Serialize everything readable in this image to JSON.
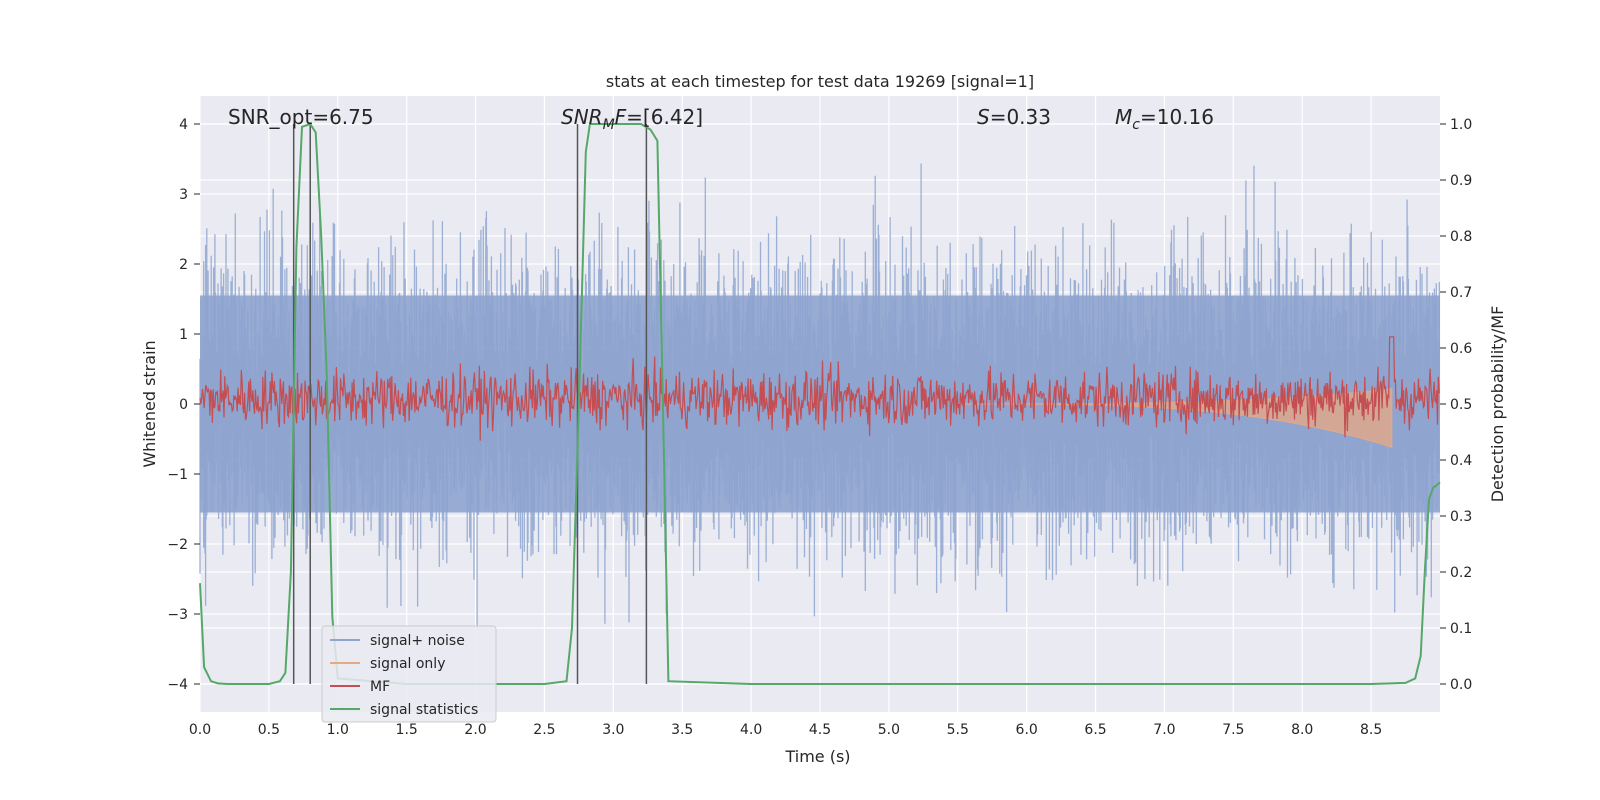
{
  "chart_data": {
    "type": "line",
    "title": "stats at each timestep for test data 19269 [signal=1]",
    "xlabel": "Time (s)",
    "ylabel_left": "Whitened strain",
    "ylabel_right": "Detection probability/MF",
    "xlim": [
      0.0,
      9.0
    ],
    "ylim_left": [
      -4.4,
      4.4
    ],
    "ylim_right": [
      -0.05,
      1.05
    ],
    "x_ticks": [
      "0.0",
      "0.5",
      "1.0",
      "1.5",
      "2.0",
      "2.5",
      "3.0",
      "3.5",
      "4.0",
      "4.5",
      "5.0",
      "5.5",
      "6.0",
      "6.5",
      "7.0",
      "7.5",
      "8.0",
      "8.5"
    ],
    "y_left_ticks": [
      "−4",
      "−3",
      "−2",
      "−1",
      "0",
      "1",
      "2",
      "3",
      "4"
    ],
    "y_right_ticks": [
      "0.0",
      "0.1",
      "0.2",
      "0.3",
      "0.4",
      "0.5",
      "0.6",
      "0.7",
      "0.8",
      "0.9",
      "1.0"
    ],
    "grid": true,
    "legend_position": "lower-left",
    "annotations": {
      "snr_opt": "SNR_opt=6.75",
      "snr_mf_base": "SNR",
      "snr_mf_sub": "M",
      "snr_mf_tail": "F",
      "snr_mf_value": "=[6.42]",
      "spin_sym": "S",
      "spin_value": "=0.33",
      "mc_sym": "M",
      "mc_sub": "c",
      "mc_value": "=10.16"
    },
    "series": [
      {
        "name": "signal+ noise",
        "color": "#8ea4cf",
        "axis": "left",
        "kind": "noise",
        "amplitude": 1.6,
        "peak": 3.9,
        "x_range": [
          0.0,
          9.0
        ]
      },
      {
        "name": "signal only",
        "color": "#e8a882",
        "axis": "left",
        "kind": "chirp",
        "x_range": [
          5.5,
          8.65
        ],
        "peak_amplitude": 0.95,
        "merger_time": 8.65
      },
      {
        "name": "MF",
        "color": "#c44e52",
        "axis": "right",
        "kind": "band",
        "baseline": 0.51,
        "spread": 0.025,
        "peak_time": 8.65,
        "peak_value": 0.62
      },
      {
        "name": "signal statistics",
        "color": "#55a868",
        "axis": "right",
        "x": [
          0.0,
          0.03,
          0.08,
          0.13,
          0.2,
          0.35,
          0.5,
          0.58,
          0.62,
          0.66,
          0.7,
          0.74,
          0.8,
          0.84,
          0.88,
          0.92,
          0.96,
          1.0,
          1.5,
          2.0,
          2.5,
          2.66,
          2.7,
          2.75,
          2.8,
          2.83,
          3.0,
          3.2,
          3.27,
          3.32,
          3.36,
          3.4,
          4.0,
          5.0,
          6.0,
          7.0,
          8.0,
          8.5,
          8.75,
          8.82,
          8.86,
          8.89,
          8.92,
          8.95,
          9.0
        ],
        "y": [
          0.18,
          0.03,
          0.005,
          0.001,
          0.0,
          0.0,
          0.0,
          0.005,
          0.02,
          0.2,
          0.78,
          0.995,
          1.0,
          0.985,
          0.8,
          0.55,
          0.12,
          0.01,
          0.0,
          0.0,
          0.0,
          0.005,
          0.1,
          0.5,
          0.95,
          1.0,
          1.0,
          1.0,
          0.99,
          0.97,
          0.5,
          0.005,
          0.0,
          0.0,
          0.0,
          0.0,
          0.0,
          0.0,
          0.002,
          0.01,
          0.05,
          0.2,
          0.33,
          0.35,
          0.36
        ]
      },
      {
        "name": "",
        "color": "#555555",
        "axis": "right",
        "kind": "vlines",
        "x": [
          0.68,
          0.8,
          2.74,
          3.24
        ]
      }
    ]
  }
}
